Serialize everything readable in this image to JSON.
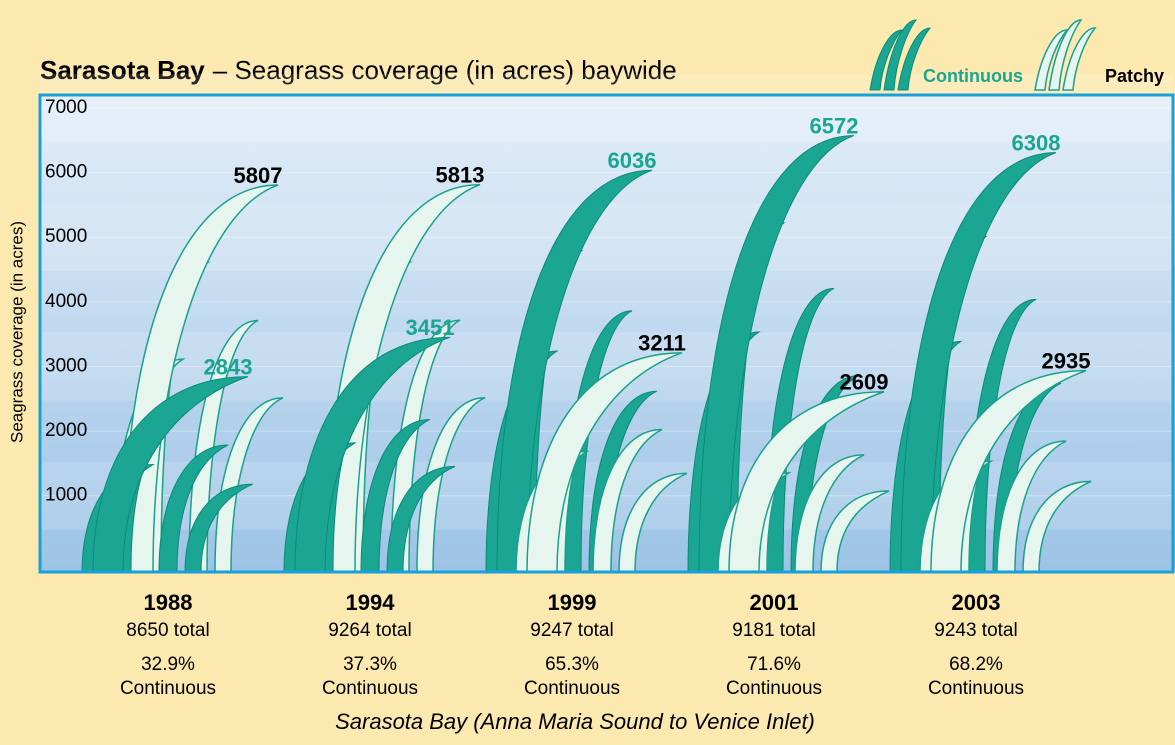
{
  "chart_data": {
    "type": "grass",
    "title_bold": "Sarasota Bay",
    "title": "– Seagrass coverage (in acres) baywide",
    "y_label": "Seagrass coverage (in acres)",
    "x_label": "Sarasota Bay (Anna Maria Sound to Venice Inlet)",
    "categories": [
      "1988",
      "1994",
      "1999",
      "2001",
      "2003"
    ],
    "series": [
      {
        "name": "Continuous",
        "color": "#1aa693",
        "values": [
          2843,
          3451,
          6036,
          6572,
          6308
        ]
      },
      {
        "name": "Patchy",
        "color": "#e6f6ee",
        "values": [
          5807,
          5813,
          3211,
          2609,
          2935
        ]
      }
    ],
    "totals": {
      "values": [
        8650,
        9264,
        9247,
        9181,
        9243
      ],
      "value_labels": [
        "8650 total",
        "9264 total",
        "9247 total",
        "9181 total",
        "9243 total"
      ]
    },
    "continuous_share": {
      "values": [
        32.9,
        37.3,
        65.3,
        71.6,
        68.2
      ],
      "value_labels": [
        "32.9%",
        "37.3%",
        "65.3%",
        "71.6%",
        "68.2%"
      ],
      "caption": "Continuous"
    },
    "ylim": [
      -180,
      7200
    ],
    "yticks": [
      1000,
      2000,
      3000,
      4000,
      5000,
      6000,
      7000
    ],
    "grid": true
  }
}
